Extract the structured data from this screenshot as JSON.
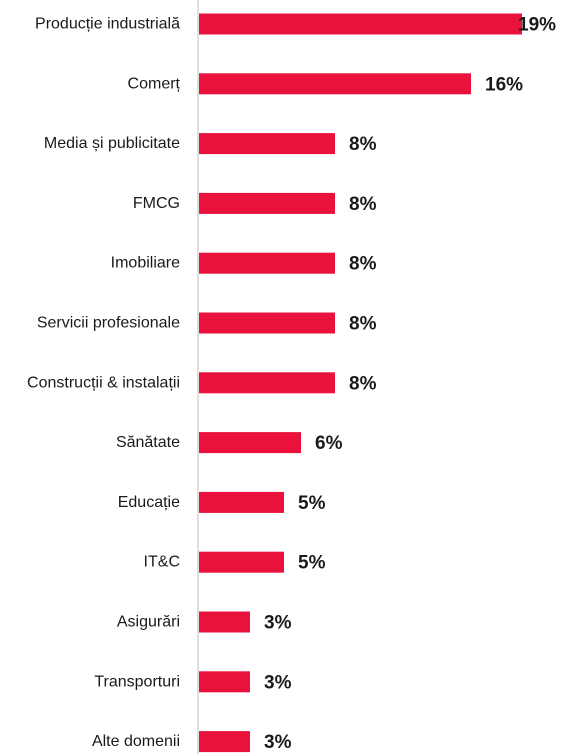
{
  "chart_data": {
    "type": "bar",
    "orientation": "horizontal",
    "categories": [
      "Producție industrială",
      "Comerț",
      "Media și publicitate",
      "FMCG",
      "Imobiliare",
      "Servicii profesionale",
      "Construcții & instalații",
      "Sănătate",
      "Educație",
      "IT&C",
      "Asigurări",
      "Transporturi",
      "Alte domenii"
    ],
    "values": [
      19,
      16,
      8,
      8,
      8,
      8,
      8,
      6,
      5,
      5,
      3,
      3,
      3
    ],
    "value_labels": [
      "19%",
      "16%",
      "8%",
      "8%",
      "8%",
      "8%",
      "8%",
      "6%",
      "5%",
      "5%",
      "3%",
      "3%",
      "3%"
    ],
    "unit": "%",
    "bar_color": "#e8123c",
    "axis_color": "#bfbfbf",
    "grid": false,
    "legend": "none"
  }
}
